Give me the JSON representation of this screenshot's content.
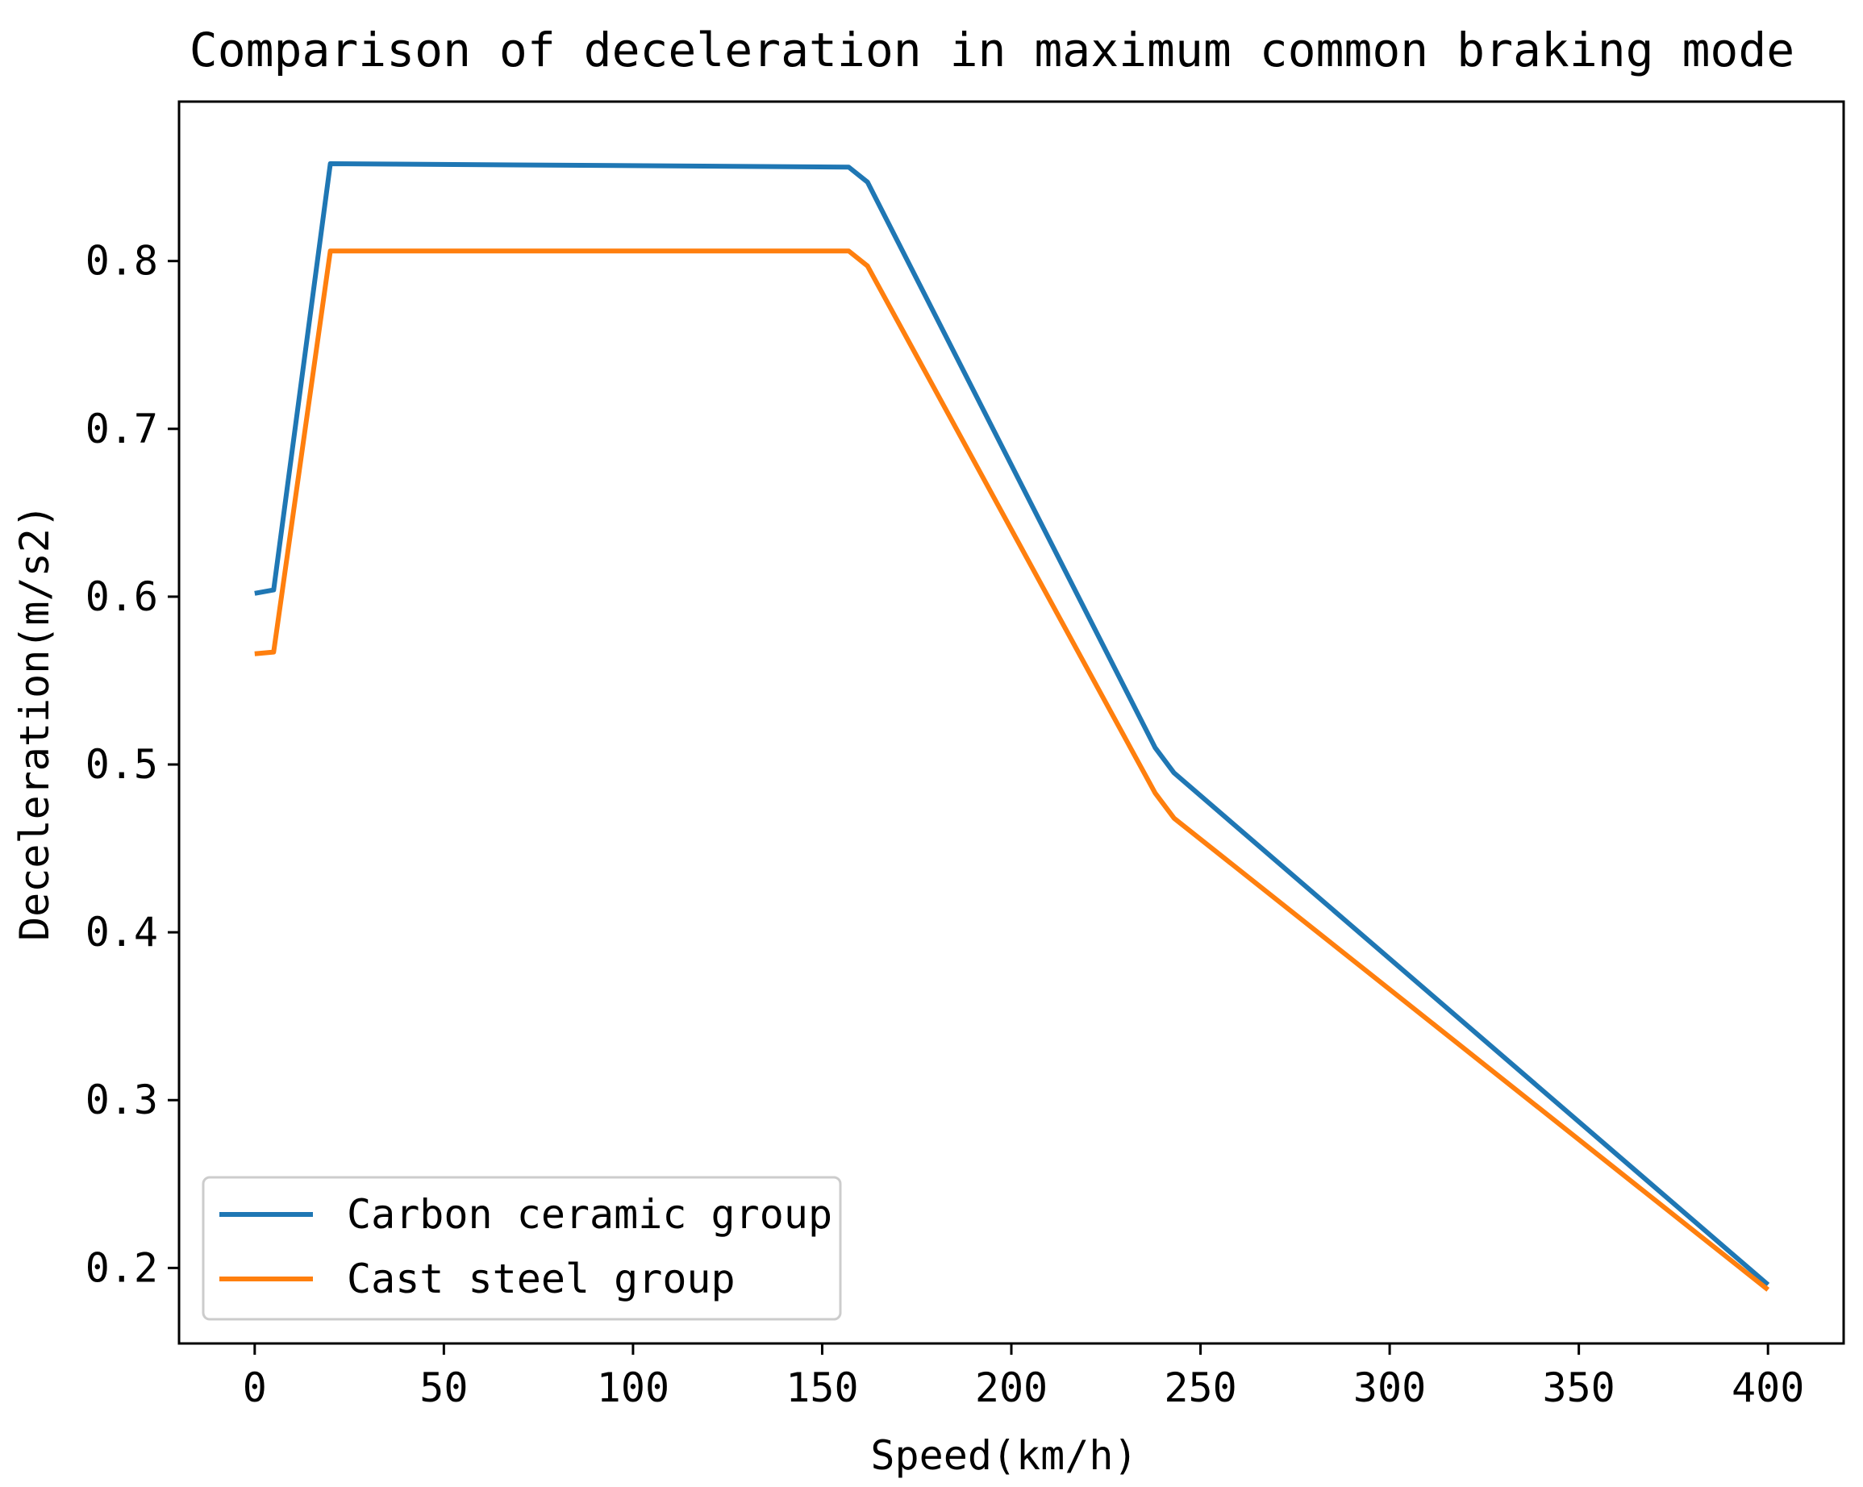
{
  "chart_data": {
    "type": "line",
    "title": "Comparison of deceleration in maximum common braking mode",
    "xlabel": "Speed(km/h)",
    "ylabel": "Deceleration(m/s2)",
    "xlim": [
      -20,
      420
    ],
    "ylim": [
      0.155,
      0.895
    ],
    "xticks": [
      0,
      50,
      100,
      150,
      200,
      250,
      300,
      350,
      400
    ],
    "yticks": [
      0.2,
      0.3,
      0.4,
      0.5,
      0.6,
      0.7,
      0.8
    ],
    "xtick_labels": [
      "0",
      "50",
      "100",
      "150",
      "200",
      "250",
      "300",
      "350",
      "400"
    ],
    "ytick_labels": [
      "0.2",
      "0.3",
      "0.4",
      "0.5",
      "0.6",
      "0.7",
      "0.8"
    ],
    "grid": false,
    "legend_position": "lower-left",
    "series": [
      {
        "name": "Carbon ceramic group",
        "color": "#1f77b4",
        "x": [
          0,
          5,
          20,
          157,
          162,
          238,
          243,
          400
        ],
        "y": [
          0.602,
          0.604,
          0.858,
          0.856,
          0.847,
          0.51,
          0.495,
          0.19
        ]
      },
      {
        "name": "Cast steel group",
        "color": "#ff7f0e",
        "x": [
          0,
          5,
          20,
          157,
          162,
          238,
          243,
          400
        ],
        "y": [
          0.566,
          0.567,
          0.806,
          0.806,
          0.797,
          0.483,
          0.468,
          0.187
        ]
      }
    ]
  }
}
